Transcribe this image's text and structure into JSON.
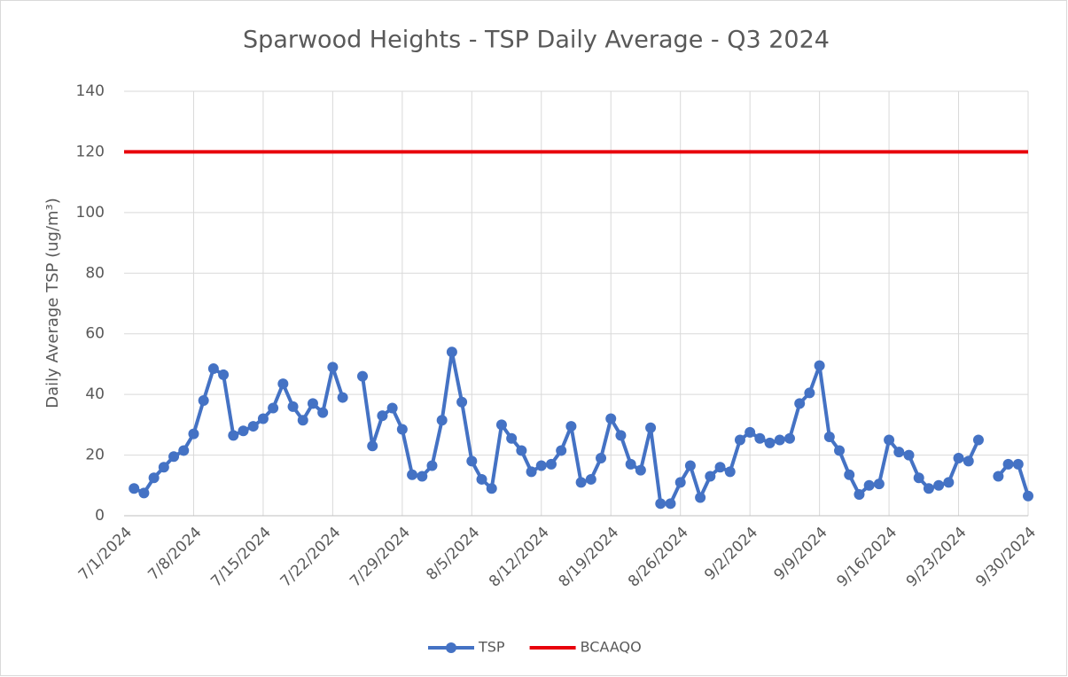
{
  "chart_data": {
    "type": "line",
    "title": "Sparwood Heights - TSP Daily Average - Q3 2024",
    "y_label": "Daily Average TSP (ug/m³)",
    "categories": [
      "7/1/2024",
      null,
      null,
      null,
      null,
      null,
      null,
      "7/8/2024",
      null,
      null,
      null,
      null,
      null,
      null,
      "7/15/2024",
      null,
      null,
      null,
      null,
      null,
      null,
      "7/22/2024",
      null,
      null,
      null,
      null,
      null,
      null,
      "7/29/2024",
      null,
      null,
      null,
      null,
      null,
      null,
      "8/5/2024",
      null,
      null,
      null,
      null,
      null,
      null,
      "8/12/2024",
      null,
      null,
      null,
      null,
      null,
      null,
      "8/19/2024",
      null,
      null,
      null,
      null,
      null,
      null,
      "8/26/2024",
      null,
      null,
      null,
      null,
      null,
      null,
      "9/2/2024",
      null,
      null,
      null,
      null,
      null,
      null,
      "9/9/2024",
      null,
      null,
      null,
      null,
      null,
      null,
      "9/16/2024",
      null,
      null,
      null,
      null,
      null,
      null,
      "9/23/2024",
      null,
      null,
      null,
      null,
      null,
      null,
      "9/30/2024"
    ],
    "series": [
      {
        "name": "TSP",
        "color": "#4472c4",
        "values": [
          null,
          9,
          7.5,
          12.5,
          16,
          19.5,
          21.5,
          27,
          38,
          48.5,
          46.5,
          26.5,
          28,
          29.5,
          32,
          35.5,
          43.5,
          36,
          31.5,
          37,
          34,
          49,
          39,
          null,
          46,
          23,
          33,
          35.5,
          28.5,
          13.5,
          13,
          16.5,
          31.5,
          54,
          37.5,
          18,
          12,
          9,
          30,
          25.5,
          21.5,
          14.5,
          16.5,
          17,
          21.5,
          29.5,
          11,
          12,
          19,
          32,
          26.5,
          17,
          15,
          29,
          4,
          4,
          11,
          16.5,
          6,
          13,
          16,
          14.5,
          25,
          27.5,
          25.5,
          24,
          25,
          25.5,
          37,
          40.5,
          49.5,
          26,
          21.5,
          13.5,
          7,
          10,
          10.5,
          25,
          21,
          20,
          12.5,
          9,
          10,
          11,
          19,
          18,
          25,
          null,
          13,
          17,
          17,
          6.5
        ]
      }
    ],
    "reference_lines": [
      {
        "name": "BCAAQO",
        "color": "#e8000b",
        "value": 120
      }
    ],
    "ylim": [
      0,
      140
    ],
    "yticks": [
      0,
      20,
      40,
      60,
      80,
      100,
      120,
      140
    ],
    "grid": true,
    "legend": "bottom"
  }
}
